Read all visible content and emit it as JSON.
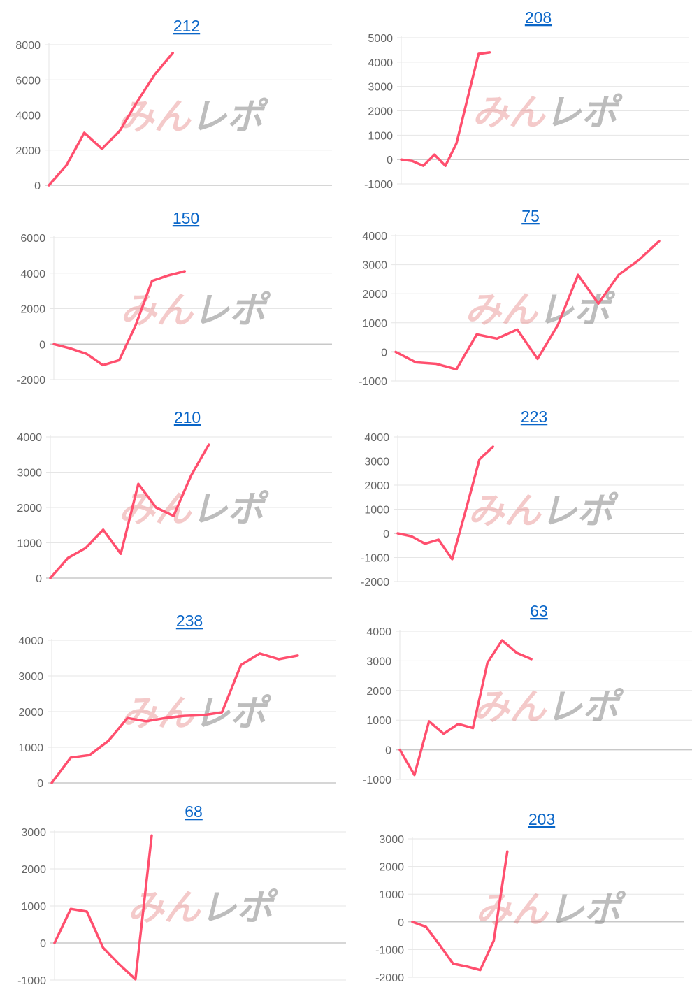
{
  "watermark": "みんレポ",
  "colors": {
    "line": "#ff4f6e",
    "title_link": "#0a66c8",
    "grid": "#e6e6e6",
    "tick_text": "#666666"
  },
  "chart_data": [
    {
      "type": "line",
      "title": "212",
      "ylim": [
        0,
        8000
      ],
      "yticks": [
        0,
        2000,
        4000,
        6000,
        8000
      ],
      "xlim": [
        0,
        16
      ],
      "grid": true,
      "values": [
        0,
        1150,
        2990,
        2070,
        3100,
        4780,
        6330,
        7530
      ]
    },
    {
      "type": "line",
      "title": "208",
      "ylim": [
        -1000,
        5000
      ],
      "yticks": [
        -1000,
        0,
        1000,
        2000,
        3000,
        4000,
        5000
      ],
      "xlim": [
        0,
        26
      ],
      "grid": true,
      "values": [
        0,
        -60,
        -260,
        200,
        -260,
        660,
        2500,
        4340,
        4400
      ]
    },
    {
      "type": "line",
      "title": "150",
      "ylim": [
        -2000,
        6000
      ],
      "yticks": [
        -2000,
        0,
        2000,
        4000,
        6000
      ],
      "xlim": [
        0,
        17
      ],
      "grid": true,
      "values": [
        0,
        -240,
        -550,
        -1190,
        -910,
        1070,
        3560,
        3870,
        4110
      ]
    },
    {
      "type": "line",
      "title": "75",
      "ylim": [
        -1000,
        4000
      ],
      "yticks": [
        -1000,
        0,
        1000,
        2000,
        3000,
        4000
      ],
      "xlim": [
        0,
        14
      ],
      "grid": true,
      "values": [
        0,
        -360,
        -410,
        -600,
        600,
        460,
        770,
        -240,
        920,
        2650,
        1660,
        2650,
        3160,
        3810
      ]
    },
    {
      "type": "line",
      "title": "210",
      "ylim": [
        0,
        4000
      ],
      "yticks": [
        0,
        1000,
        2000,
        3000,
        4000
      ],
      "xlim": [
        0,
        16
      ],
      "grid": true,
      "values": [
        0,
        570,
        850,
        1370,
        690,
        2670,
        2000,
        1760,
        2910,
        3780
      ]
    },
    {
      "type": "line",
      "title": "223",
      "ylim": [
        -2000,
        4000
      ],
      "yticks": [
        -2000,
        -1000,
        0,
        1000,
        2000,
        3000,
        4000
      ],
      "xlim": [
        0,
        21
      ],
      "grid": true,
      "values": [
        0,
        -120,
        -430,
        -260,
        -1070,
        960,
        3070,
        3590
      ]
    },
    {
      "type": "line",
      "title": "238",
      "ylim": [
        0,
        4000
      ],
      "yticks": [
        0,
        1000,
        2000,
        3000,
        4000
      ],
      "xlim": [
        0,
        15
      ],
      "grid": true,
      "values": [
        0,
        710,
        780,
        1180,
        1820,
        1730,
        1820,
        1880,
        1900,
        1980,
        3310,
        3630,
        3470,
        3570
      ]
    },
    {
      "type": "line",
      "title": "63",
      "ylim": [
        -1000,
        4000
      ],
      "yticks": [
        -1000,
        0,
        1000,
        2000,
        3000,
        4000
      ],
      "xlim": [
        0,
        20
      ],
      "grid": true,
      "values": [
        0,
        -850,
        960,
        540,
        870,
        730,
        2940,
        3690,
        3270,
        3060
      ]
    },
    {
      "type": "line",
      "title": "68",
      "ylim": [
        -1000,
        3000
      ],
      "yticks": [
        -1000,
        0,
        1000,
        2000,
        3000
      ],
      "xlim": [
        0,
        18
      ],
      "grid": true,
      "values": [
        0,
        920,
        850,
        -130,
        -580,
        -980,
        2900
      ]
    },
    {
      "type": "line",
      "title": "203",
      "ylim": [
        -2000,
        3000
      ],
      "yticks": [
        -2000,
        -1000,
        0,
        1000,
        2000,
        3000
      ],
      "xlim": [
        0,
        20
      ],
      "grid": true,
      "values": [
        0,
        -180,
        -830,
        -1510,
        -1610,
        -1740,
        -680,
        2540
      ]
    }
  ]
}
